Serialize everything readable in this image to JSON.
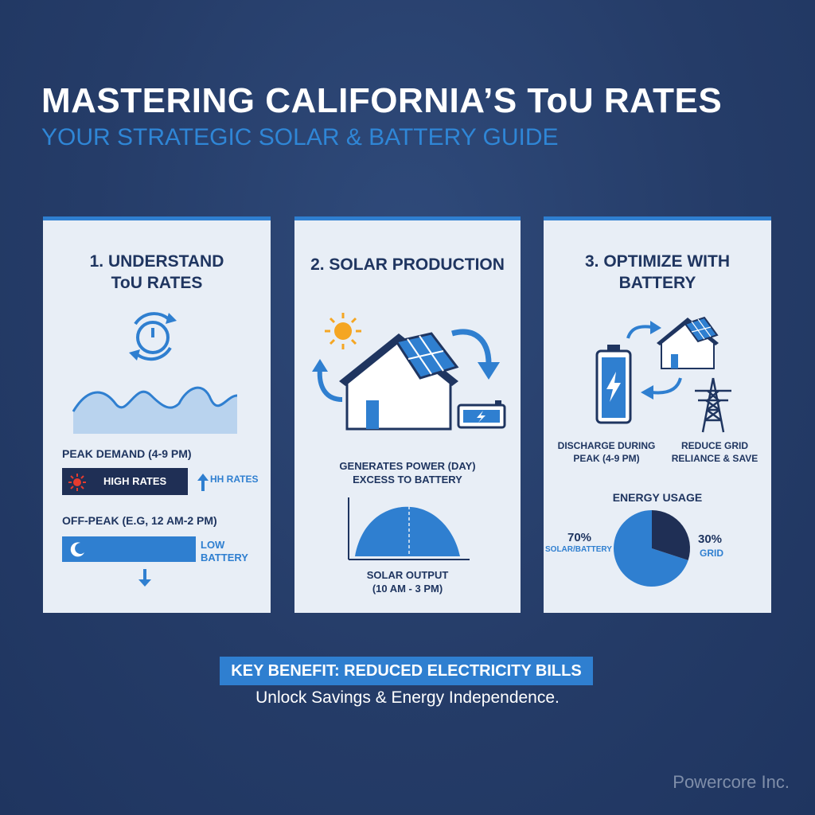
{
  "header": {
    "title": "MASTERING CALIFORNIA’S ToU RATES",
    "subtitle": "YOUR STRATEGIC SOLAR & BATTERY GUIDE"
  },
  "card1": {
    "title_line1": "1. UNDERSTAND",
    "title_line2": "ToU RATES",
    "peak_label": "PEAK DEMAND (4-9 PM)",
    "high_rates": "HIGH RATES",
    "hh_rates": "HH RATES",
    "offpeak_label": "OFF-PEAK (E.G, 12 AM-2 PM)",
    "low_line1": "LOW",
    "low_line2": "BATTERY",
    "icons": [
      "clock-cycle-icon",
      "wave-demand-icon",
      "sun-icon",
      "arrow-up-icon",
      "moon-icon",
      "arrow-down-icon"
    ]
  },
  "card2": {
    "title": "2. SOLAR PRODUCTION",
    "generates_line1": "GENERATES POWER (DAY)",
    "generates_line2": "EXCESS TO BATTERY",
    "output_line1": "SOLAR OUTPUT",
    "output_line2": "(10 AM - 3 PM)",
    "icons": [
      "sun-icon",
      "solar-house-icon",
      "battery-icon",
      "curved-arrow-icon",
      "solar-output-curve-icon"
    ]
  },
  "card3": {
    "title_line1": "3. OPTIMIZE WITH",
    "title_line2": "BATTERY",
    "discharge_line1": "DISCHARGE DURING",
    "discharge_line2": "PEAK (4-9 PM)",
    "reduce_line1": "REDUCE GRID",
    "reduce_line2": "RELIANCE & SAVE",
    "usage_title": "ENERGY USAGE",
    "icons": [
      "battery-icon",
      "solar-house-icon",
      "power-tower-icon",
      "curved-arrow-icon"
    ]
  },
  "chart_data": {
    "type": "pie",
    "title": "ENERGY USAGE",
    "slices": [
      {
        "label": "SOLAR/BATTERY",
        "value": 70,
        "display": "70%",
        "color": "#2f7fd0"
      },
      {
        "label": "GRID",
        "value": 30,
        "display": "30%",
        "color": "#1f2f55"
      }
    ]
  },
  "footer": {
    "banner": "KEY BENEFIT: REDUCED ELECTRICITY BILLS",
    "sub": "Unlock Savings & Energy Independence.",
    "brand": "Powercore Inc."
  },
  "colors": {
    "background": "#253c68",
    "accent_blue": "#2f7fd0",
    "navy": "#1f2f55",
    "card": "#e8eef6",
    "sun": "#f5a623",
    "alert_red": "#e63b2e"
  }
}
